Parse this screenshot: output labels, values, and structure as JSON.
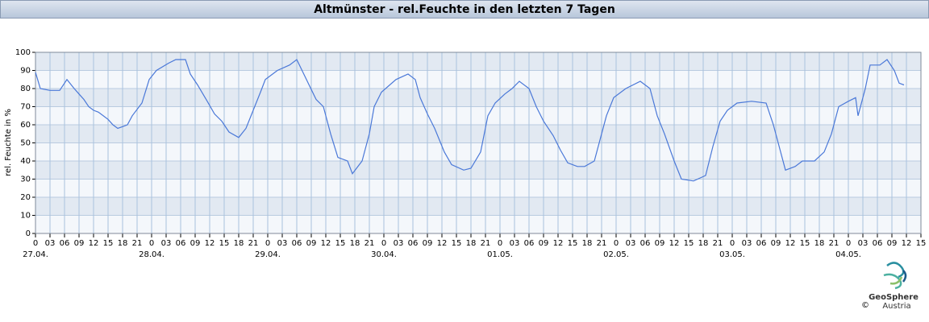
{
  "chart_data": {
    "type": "line",
    "title": "Altmünster - rel.Feuchte in den letzten 7 Tagen",
    "ylabel": "rel. Feuchte in %",
    "color": "#4a78d8",
    "grid": true,
    "xlim": [
      0,
      183
    ],
    "ylim": [
      0,
      100
    ],
    "yticks": [
      0,
      10,
      20,
      30,
      40,
      50,
      60,
      70,
      80,
      90,
      100
    ],
    "xticks": [
      0,
      {
        "value": 3,
        "label": "03"
      },
      {
        "value": 6,
        "label": "06"
      },
      {
        "value": 9,
        "label": "09"
      },
      12,
      15,
      18,
      21,
      {
        "value": 24,
        "label": "0"
      },
      {
        "value": 27,
        "label": "03"
      },
      {
        "value": 30,
        "label": "06"
      },
      {
        "value": 33,
        "label": "09"
      },
      {
        "value": 36,
        "label": "12"
      },
      {
        "value": 39,
        "label": "15"
      },
      {
        "value": 42,
        "label": "18"
      },
      {
        "value": 45,
        "label": "21"
      },
      {
        "value": 48,
        "label": "0"
      },
      {
        "value": 51,
        "label": "03"
      },
      {
        "value": 54,
        "label": "06"
      },
      {
        "value": 57,
        "label": "09"
      },
      {
        "value": 60,
        "label": "12"
      },
      {
        "value": 63,
        "label": "15"
      },
      {
        "value": 66,
        "label": "18"
      },
      {
        "value": 69,
        "label": "21"
      },
      {
        "value": 72,
        "label": "0"
      },
      {
        "value": 75,
        "label": "03"
      },
      {
        "value": 78,
        "label": "06"
      },
      {
        "value": 81,
        "label": "09"
      },
      {
        "value": 84,
        "label": "12"
      },
      {
        "value": 87,
        "label": "15"
      },
      {
        "value": 90,
        "label": "18"
      },
      {
        "value": 93,
        "label": "21"
      },
      {
        "value": 96,
        "label": "0"
      },
      {
        "value": 99,
        "label": "03"
      },
      {
        "value": 102,
        "label": "06"
      },
      {
        "value": 105,
        "label": "09"
      },
      {
        "value": 108,
        "label": "12"
      },
      {
        "value": 111,
        "label": "15"
      },
      {
        "value": 114,
        "label": "18"
      },
      {
        "value": 117,
        "label": "21"
      },
      {
        "value": 120,
        "label": "0"
      },
      {
        "value": 123,
        "label": "03"
      },
      {
        "value": 126,
        "label": "06"
      },
      {
        "value": 129,
        "label": "09"
      },
      {
        "value": 132,
        "label": "12"
      },
      {
        "value": 135,
        "label": "15"
      },
      {
        "value": 138,
        "label": "18"
      },
      {
        "value": 141,
        "label": "21"
      },
      {
        "value": 144,
        "label": "0"
      },
      {
        "value": 147,
        "label": "03"
      },
      {
        "value": 150,
        "label": "06"
      },
      {
        "value": 153,
        "label": "09"
      },
      {
        "value": 156,
        "label": "12"
      },
      {
        "value": 159,
        "label": "15"
      },
      {
        "value": 162,
        "label": "18"
      },
      {
        "value": 165,
        "label": "21"
      },
      {
        "value": 168,
        "label": "0"
      },
      {
        "value": 171,
        "label": "03"
      },
      {
        "value": 174,
        "label": "06"
      },
      {
        "value": 177,
        "label": "09"
      },
      {
        "value": 180,
        "label": "12"
      },
      {
        "value": 183,
        "label": "15"
      }
    ],
    "date_labels": [
      {
        "value": 0,
        "label": "27.04."
      },
      {
        "value": 24,
        "label": "28.04."
      },
      {
        "value": 48,
        "label": "29.04."
      },
      {
        "value": 72,
        "label": "30.04."
      },
      {
        "value": 96,
        "label": "01.05."
      },
      {
        "value": 120,
        "label": "02.05."
      },
      {
        "value": 144,
        "label": "03.05."
      },
      {
        "value": 168,
        "label": "04.05."
      }
    ],
    "x": [
      0,
      1,
      3,
      5,
      6.5,
      8,
      9,
      10,
      11,
      12,
      13,
      15,
      16,
      17,
      18,
      19,
      20,
      22,
      23.5,
      25,
      27.5,
      29,
      31,
      32,
      33.5,
      35.5,
      37,
      38.5,
      40,
      42,
      43.5,
      45,
      46.5,
      47.5,
      50,
      52.5,
      54,
      56,
      58,
      59.5,
      61,
      62.5,
      64.5,
      65.5,
      67.5,
      69,
      70,
      71.5,
      74.5,
      77,
      78.5,
      79.5,
      81,
      82.5,
      84.5,
      86,
      88.5,
      90,
      92,
      93.5,
      95,
      97,
      98.5,
      100,
      102,
      103.5,
      105,
      107,
      108.5,
      110,
      112,
      113.5,
      115.5,
      117,
      118,
      119.5,
      122,
      125,
      127,
      128.5,
      130,
      132,
      133.5,
      136,
      138.5,
      140,
      141.5,
      143,
      145,
      148,
      151,
      152.5,
      153.5,
      155,
      157,
      158.5,
      161,
      163,
      164.5,
      166,
      168,
      169.5,
      170,
      171.5,
      172.5,
      174.5,
      176,
      177.5,
      178.5,
      179.5
    ],
    "values": [
      89,
      80,
      79,
      79,
      85,
      80,
      77,
      74,
      70,
      68,
      67,
      63,
      60,
      58,
      59,
      60,
      65,
      72,
      85,
      90,
      94,
      96,
      96,
      88,
      82,
      73,
      66,
      62,
      56,
      53,
      58,
      68,
      78,
      85,
      90,
      93,
      96,
      85,
      74,
      70,
      55,
      42,
      40,
      33,
      40,
      55,
      70,
      78,
      85,
      88,
      85,
      75,
      66,
      58,
      45,
      38,
      35,
      36,
      45,
      65,
      72,
      77,
      80,
      84,
      80,
      70,
      62,
      54,
      46,
      39,
      37,
      37,
      40,
      55,
      65,
      75,
      80,
      84,
      80,
      65,
      55,
      40,
      30,
      29,
      32,
      48,
      62,
      68,
      72,
      73,
      72,
      60,
      50,
      35,
      37,
      40,
      40,
      45,
      55,
      70,
      73,
      75,
      65,
      80,
      93,
      93,
      96,
      90,
      83,
      82
    ]
  },
  "logo": {
    "name": "GeoSphere",
    "sub": "Austria",
    "copyright": "©"
  }
}
